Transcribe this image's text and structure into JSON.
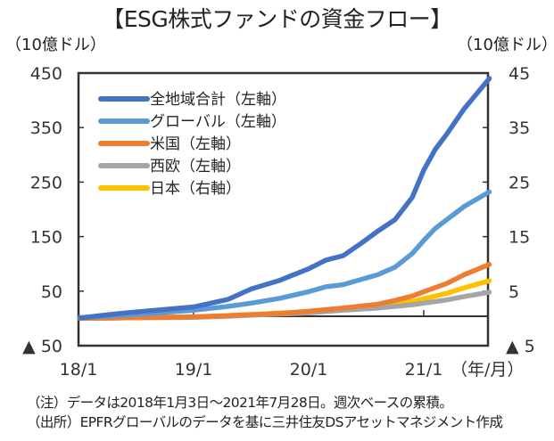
{
  "header": {
    "title": "【ESG株式ファンドの資金フロー】",
    "left_unit": "（10億ドル）",
    "right_unit": "（10億ドル）"
  },
  "notes": {
    "note": "（注）データは2018年1月3日～2021年7月28日。週次ベースの累積。",
    "source": "（出所）EPFRグローバルのデータを基に三井住友DSアセットマネジメント作成"
  },
  "colors": {
    "global_total": "#4472C4",
    "global": "#5B9BD5",
    "us": "#ED7D31",
    "western_europe": "#A5A5A5",
    "japan": "#FFC000"
  },
  "chart_data": {
    "type": "line",
    "title": "【ESG株式ファンドの資金フロー】",
    "xlabel": "（年/月）",
    "ylabel_left": "（10億ドル）",
    "ylabel_right": "（10億ドル）",
    "x_tick_labels": [
      "18/1",
      "19/1",
      "20/1",
      "21/1"
    ],
    "x_tick_values": [
      2018.0,
      2019.0,
      2020.0,
      2021.0
    ],
    "x_range": [
      2018.0,
      2021.6
    ],
    "y_left": {
      "range": [
        -50,
        450
      ],
      "ticks": [
        450,
        350,
        250,
        150,
        50,
        -50
      ],
      "tick_labels": [
        "450",
        "350",
        "250",
        "150",
        "50",
        "▲ 50"
      ]
    },
    "y_right": {
      "range": [
        -5,
        45
      ],
      "ticks": [
        45,
        35,
        25,
        15,
        5,
        -5
      ],
      "tick_labels": [
        "45",
        "35",
        "25",
        "15",
        "5",
        "▲ 5"
      ]
    },
    "grid": false,
    "legend_position": "top-left",
    "series": [
      {
        "name": "全地域合計（左軸）",
        "axis": "left",
        "color_key": "global_total",
        "x": [
          2018.01,
          2018.4,
          2019.0,
          2019.3,
          2019.5,
          2019.75,
          2020.0,
          2020.15,
          2020.3,
          2020.45,
          2020.6,
          2020.75,
          2020.9,
          2021.0,
          2021.1,
          2021.2,
          2021.35,
          2021.57
        ],
        "values": [
          1,
          10,
          21,
          35,
          54,
          70,
          91,
          107,
          115,
          137,
          160,
          181,
          222,
          272,
          310,
          338,
          384,
          440
        ]
      },
      {
        "name": "グローバル（左軸）",
        "axis": "left",
        "color_key": "global",
        "x": [
          2018.01,
          2018.4,
          2019.0,
          2019.3,
          2019.5,
          2019.75,
          2020.0,
          2020.15,
          2020.3,
          2020.45,
          2020.6,
          2020.75,
          2020.9,
          2021.0,
          2021.1,
          2021.2,
          2021.35,
          2021.57
        ],
        "values": [
          1,
          6,
          15,
          22,
          28,
          37,
          49,
          58,
          62,
          71,
          80,
          94,
          119,
          143,
          165,
          181,
          205,
          232
        ]
      },
      {
        "name": "米国（左軸）",
        "axis": "left",
        "color_key": "us",
        "x": [
          2018.01,
          2018.4,
          2019.0,
          2019.3,
          2019.5,
          2019.75,
          2020.0,
          2020.3,
          2020.6,
          2020.75,
          2020.9,
          2021.0,
          2021.2,
          2021.35,
          2021.57
        ],
        "values": [
          0,
          1,
          3,
          5,
          7,
          9,
          13,
          19,
          26,
          33,
          41,
          49,
          64,
          80,
          99
        ]
      },
      {
        "name": "西欧（左軸）",
        "axis": "left",
        "color_key": "western_europe",
        "x": [
          2018.01,
          2018.4,
          2019.0,
          2019.3,
          2019.5,
          2019.75,
          2020.0,
          2020.3,
          2020.6,
          2020.9,
          2021.0,
          2021.2,
          2021.35,
          2021.57
        ],
        "values": [
          0,
          1,
          2,
          4,
          6,
          8,
          10,
          15,
          19,
          25,
          28,
          34,
          40,
          48
        ]
      },
      {
        "name": "日本（右軸）",
        "axis": "right",
        "color_key": "japan",
        "x": [
          2018.01,
          2018.4,
          2019.0,
          2019.3,
          2019.5,
          2019.75,
          2020.0,
          2020.3,
          2020.6,
          2020.9,
          2021.0,
          2021.2,
          2021.35,
          2021.57
        ],
        "values": [
          0.1,
          0.2,
          0.3,
          0.5,
          0.7,
          1.0,
          1.2,
          1.8,
          2.5,
          3.1,
          3.6,
          4.6,
          5.6,
          6.9
        ]
      }
    ]
  }
}
